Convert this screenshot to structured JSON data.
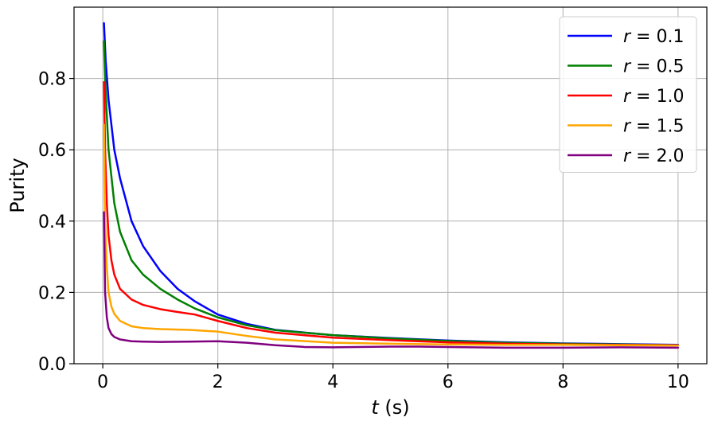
{
  "chart_data": {
    "type": "line",
    "xlabel_var": "t",
    "xlabel_unit": " (s)",
    "ylabel": "Purity",
    "xlim": [
      -0.5,
      10.5
    ],
    "ylim": [
      0.0,
      1.0
    ],
    "xticks": [
      0,
      2,
      4,
      6,
      8,
      10
    ],
    "yticks": [
      0.0,
      0.2,
      0.4,
      0.6,
      0.8
    ],
    "xtick_labels": [
      "0",
      "2",
      "4",
      "6",
      "8",
      "10"
    ],
    "ytick_labels": [
      "0.0",
      "0.2",
      "0.4",
      "0.6",
      "0.8"
    ],
    "grid": true,
    "legend_position": "top-right",
    "series": [
      {
        "name": "r = 0.1",
        "legend_var": "r",
        "legend_value": " = 0.1",
        "color": "#0000ff",
        "x": [
          0.02,
          0.05,
          0.1,
          0.2,
          0.3,
          0.5,
          0.7,
          1.0,
          1.3,
          1.6,
          2.0,
          2.5,
          3.0,
          4.0,
          5.0,
          6.0,
          7.0,
          8.0,
          9.0,
          10.0
        ],
        "y": [
          0.955,
          0.85,
          0.74,
          0.6,
          0.52,
          0.4,
          0.33,
          0.26,
          0.21,
          0.175,
          0.138,
          0.112,
          0.095,
          0.08,
          0.072,
          0.065,
          0.06,
          0.057,
          0.055,
          0.053
        ]
      },
      {
        "name": "r = 0.5",
        "legend_var": "r",
        "legend_value": " = 0.5",
        "color": "#008000",
        "x": [
          0.02,
          0.05,
          0.1,
          0.2,
          0.3,
          0.5,
          0.7,
          1.0,
          1.3,
          1.6,
          2.0,
          2.5,
          3.0,
          4.0,
          5.0,
          6.0,
          7.0,
          8.0,
          9.0,
          10.0
        ],
        "y": [
          0.905,
          0.76,
          0.6,
          0.45,
          0.37,
          0.29,
          0.25,
          0.21,
          0.18,
          0.155,
          0.13,
          0.108,
          0.094,
          0.08,
          0.071,
          0.064,
          0.059,
          0.056,
          0.054,
          0.052
        ]
      },
      {
        "name": "r = 1.0",
        "legend_var": "r",
        "legend_value": " = 1.0",
        "color": "#ff0000",
        "x": [
          0.02,
          0.04,
          0.07,
          0.1,
          0.15,
          0.2,
          0.3,
          0.5,
          0.7,
          1.0,
          1.3,
          1.6,
          2.0,
          2.5,
          3.0,
          4.0,
          5.0,
          6.0,
          7.0,
          8.0,
          9.0,
          10.0
        ],
        "y": [
          0.79,
          0.6,
          0.45,
          0.36,
          0.29,
          0.25,
          0.21,
          0.18,
          0.165,
          0.153,
          0.145,
          0.138,
          0.12,
          0.1,
          0.087,
          0.073,
          0.066,
          0.06,
          0.056,
          0.054,
          0.053,
          0.052
        ]
      },
      {
        "name": "r = 1.5",
        "legend_var": "r",
        "legend_value": " = 1.5",
        "color": "#ffa500",
        "x": [
          0.02,
          0.04,
          0.07,
          0.1,
          0.15,
          0.2,
          0.3,
          0.5,
          0.7,
          1.0,
          1.5,
          2.0,
          2.5,
          3.0,
          4.0,
          5.0,
          6.0,
          7.0,
          8.0,
          9.0,
          10.0
        ],
        "y": [
          0.67,
          0.4,
          0.27,
          0.2,
          0.16,
          0.14,
          0.12,
          0.105,
          0.1,
          0.097,
          0.095,
          0.09,
          0.078,
          0.068,
          0.059,
          0.056,
          0.054,
          0.053,
          0.053,
          0.052,
          0.051
        ]
      },
      {
        "name": "r = 2.0",
        "legend_var": "r",
        "legend_value": " = 2.0",
        "color": "#800080",
        "x": [
          0.02,
          0.04,
          0.07,
          0.1,
          0.15,
          0.2,
          0.3,
          0.5,
          0.7,
          1.0,
          1.5,
          2.0,
          2.5,
          3.0,
          3.5,
          4.0,
          5.0,
          5.5,
          6.0,
          7.0,
          8.0,
          9.0,
          10.0
        ],
        "y": [
          0.425,
          0.2,
          0.13,
          0.1,
          0.083,
          0.075,
          0.068,
          0.063,
          0.062,
          0.061,
          0.062,
          0.063,
          0.059,
          0.052,
          0.047,
          0.046,
          0.048,
          0.048,
          0.047,
          0.045,
          0.045,
          0.046,
          0.045
        ]
      }
    ]
  }
}
